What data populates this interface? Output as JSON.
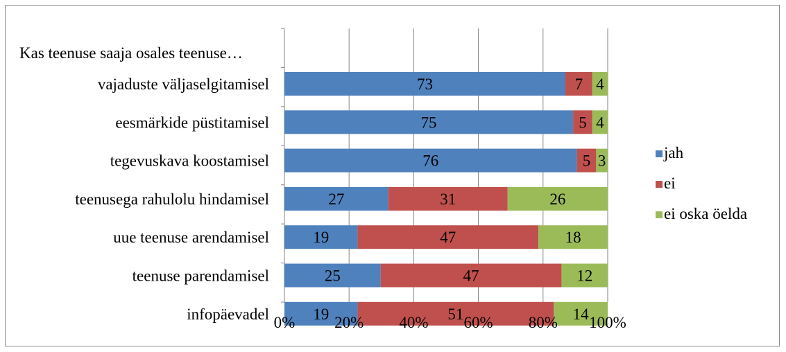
{
  "chart_data": {
    "type": "bar",
    "orientation": "horizontal",
    "stacked": "percent",
    "question": "Kas teenuse saaja osales teenuse…",
    "categories": [
      "vajaduste väljaselgitamisel",
      "eesmärkide püstitamisel",
      "tegevuskava koostamisel",
      "teenusega rahulolu hindamisel",
      "uue teenuse arendamisel",
      "teenuse parendamisel",
      "infopäevadel"
    ],
    "series": [
      {
        "name": "jah",
        "color": "#4f81bd",
        "values": [
          73,
          75,
          76,
          27,
          19,
          25,
          19
        ]
      },
      {
        "name": "ei",
        "color": "#c0504d",
        "values": [
          7,
          5,
          5,
          31,
          47,
          47,
          51
        ]
      },
      {
        "name": "ei oska öelda",
        "color": "#9bbb59",
        "values": [
          4,
          4,
          3,
          26,
          18,
          12,
          14
        ]
      }
    ],
    "xlim": [
      0,
      100
    ],
    "xticks": [
      "0%",
      "20%",
      "40%",
      "60%",
      "80%",
      "100%"
    ],
    "grid": "vertical",
    "legend": "right"
  }
}
